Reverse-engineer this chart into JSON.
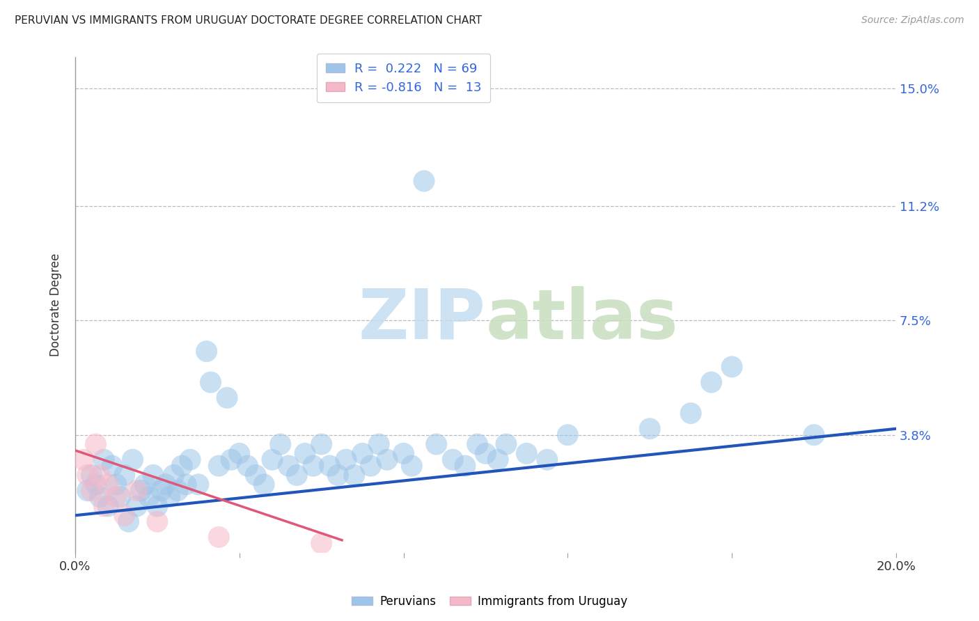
{
  "title": "PERUVIAN VS IMMIGRANTS FROM URUGUAY DOCTORATE DEGREE CORRELATION CHART",
  "source": "Source: ZipAtlas.com",
  "ylabel": "Doctorate Degree",
  "xlim": [
    0.0,
    0.2
  ],
  "ylim": [
    0.0,
    0.16
  ],
  "yticks": [
    0.038,
    0.075,
    0.112,
    0.15
  ],
  "ytick_labels": [
    "3.8%",
    "7.5%",
    "11.2%",
    "15.0%"
  ],
  "xticks": [
    0.0,
    0.04,
    0.08,
    0.12,
    0.16,
    0.2
  ],
  "xtick_labels_visible": [
    "0.0%",
    "",
    "",
    "",
    "",
    "20.0%"
  ],
  "blue_R": 0.222,
  "blue_N": 69,
  "pink_R": -0.816,
  "pink_N": 13,
  "blue_color": "#9ec5e8",
  "pink_color": "#f5b8c8",
  "blue_line_color": "#2255bb",
  "pink_line_color": "#e05878",
  "legend_text_color": "#3366dd",
  "blue_scatter_x": [
    0.003,
    0.004,
    0.005,
    0.006,
    0.007,
    0.008,
    0.009,
    0.01,
    0.011,
    0.012,
    0.013,
    0.014,
    0.015,
    0.016,
    0.017,
    0.018,
    0.019,
    0.02,
    0.021,
    0.022,
    0.023,
    0.024,
    0.025,
    0.026,
    0.027,
    0.028,
    0.03,
    0.032,
    0.033,
    0.035,
    0.037,
    0.038,
    0.04,
    0.042,
    0.044,
    0.046,
    0.048,
    0.05,
    0.052,
    0.054,
    0.056,
    0.058,
    0.06,
    0.062,
    0.064,
    0.066,
    0.068,
    0.07,
    0.072,
    0.074,
    0.076,
    0.08,
    0.082,
    0.085,
    0.088,
    0.092,
    0.095,
    0.098,
    0.1,
    0.103,
    0.105,
    0.11,
    0.115,
    0.12,
    0.14,
    0.15,
    0.155,
    0.16,
    0.18
  ],
  "blue_scatter_y": [
    0.02,
    0.025,
    0.022,
    0.018,
    0.03,
    0.015,
    0.028,
    0.022,
    0.018,
    0.025,
    0.01,
    0.03,
    0.015,
    0.02,
    0.022,
    0.018,
    0.025,
    0.015,
    0.02,
    0.022,
    0.018,
    0.025,
    0.02,
    0.028,
    0.022,
    0.03,
    0.022,
    0.065,
    0.055,
    0.028,
    0.05,
    0.03,
    0.032,
    0.028,
    0.025,
    0.022,
    0.03,
    0.035,
    0.028,
    0.025,
    0.032,
    0.028,
    0.035,
    0.028,
    0.025,
    0.03,
    0.025,
    0.032,
    0.028,
    0.035,
    0.03,
    0.032,
    0.028,
    0.12,
    0.035,
    0.03,
    0.028,
    0.035,
    0.032,
    0.03,
    0.035,
    0.032,
    0.03,
    0.038,
    0.04,
    0.045,
    0.055,
    0.06,
    0.038
  ],
  "pink_scatter_x": [
    0.002,
    0.003,
    0.004,
    0.005,
    0.006,
    0.007,
    0.008,
    0.01,
    0.012,
    0.015,
    0.02,
    0.035,
    0.06
  ],
  "pink_scatter_y": [
    0.03,
    0.025,
    0.02,
    0.035,
    0.025,
    0.015,
    0.022,
    0.018,
    0.012,
    0.02,
    0.01,
    0.005,
    0.003
  ],
  "blue_trend_x": [
    0.0,
    0.2
  ],
  "blue_trend_y": [
    0.012,
    0.04
  ],
  "pink_trend_x": [
    0.0,
    0.065
  ],
  "pink_trend_y": [
    0.033,
    0.004
  ]
}
